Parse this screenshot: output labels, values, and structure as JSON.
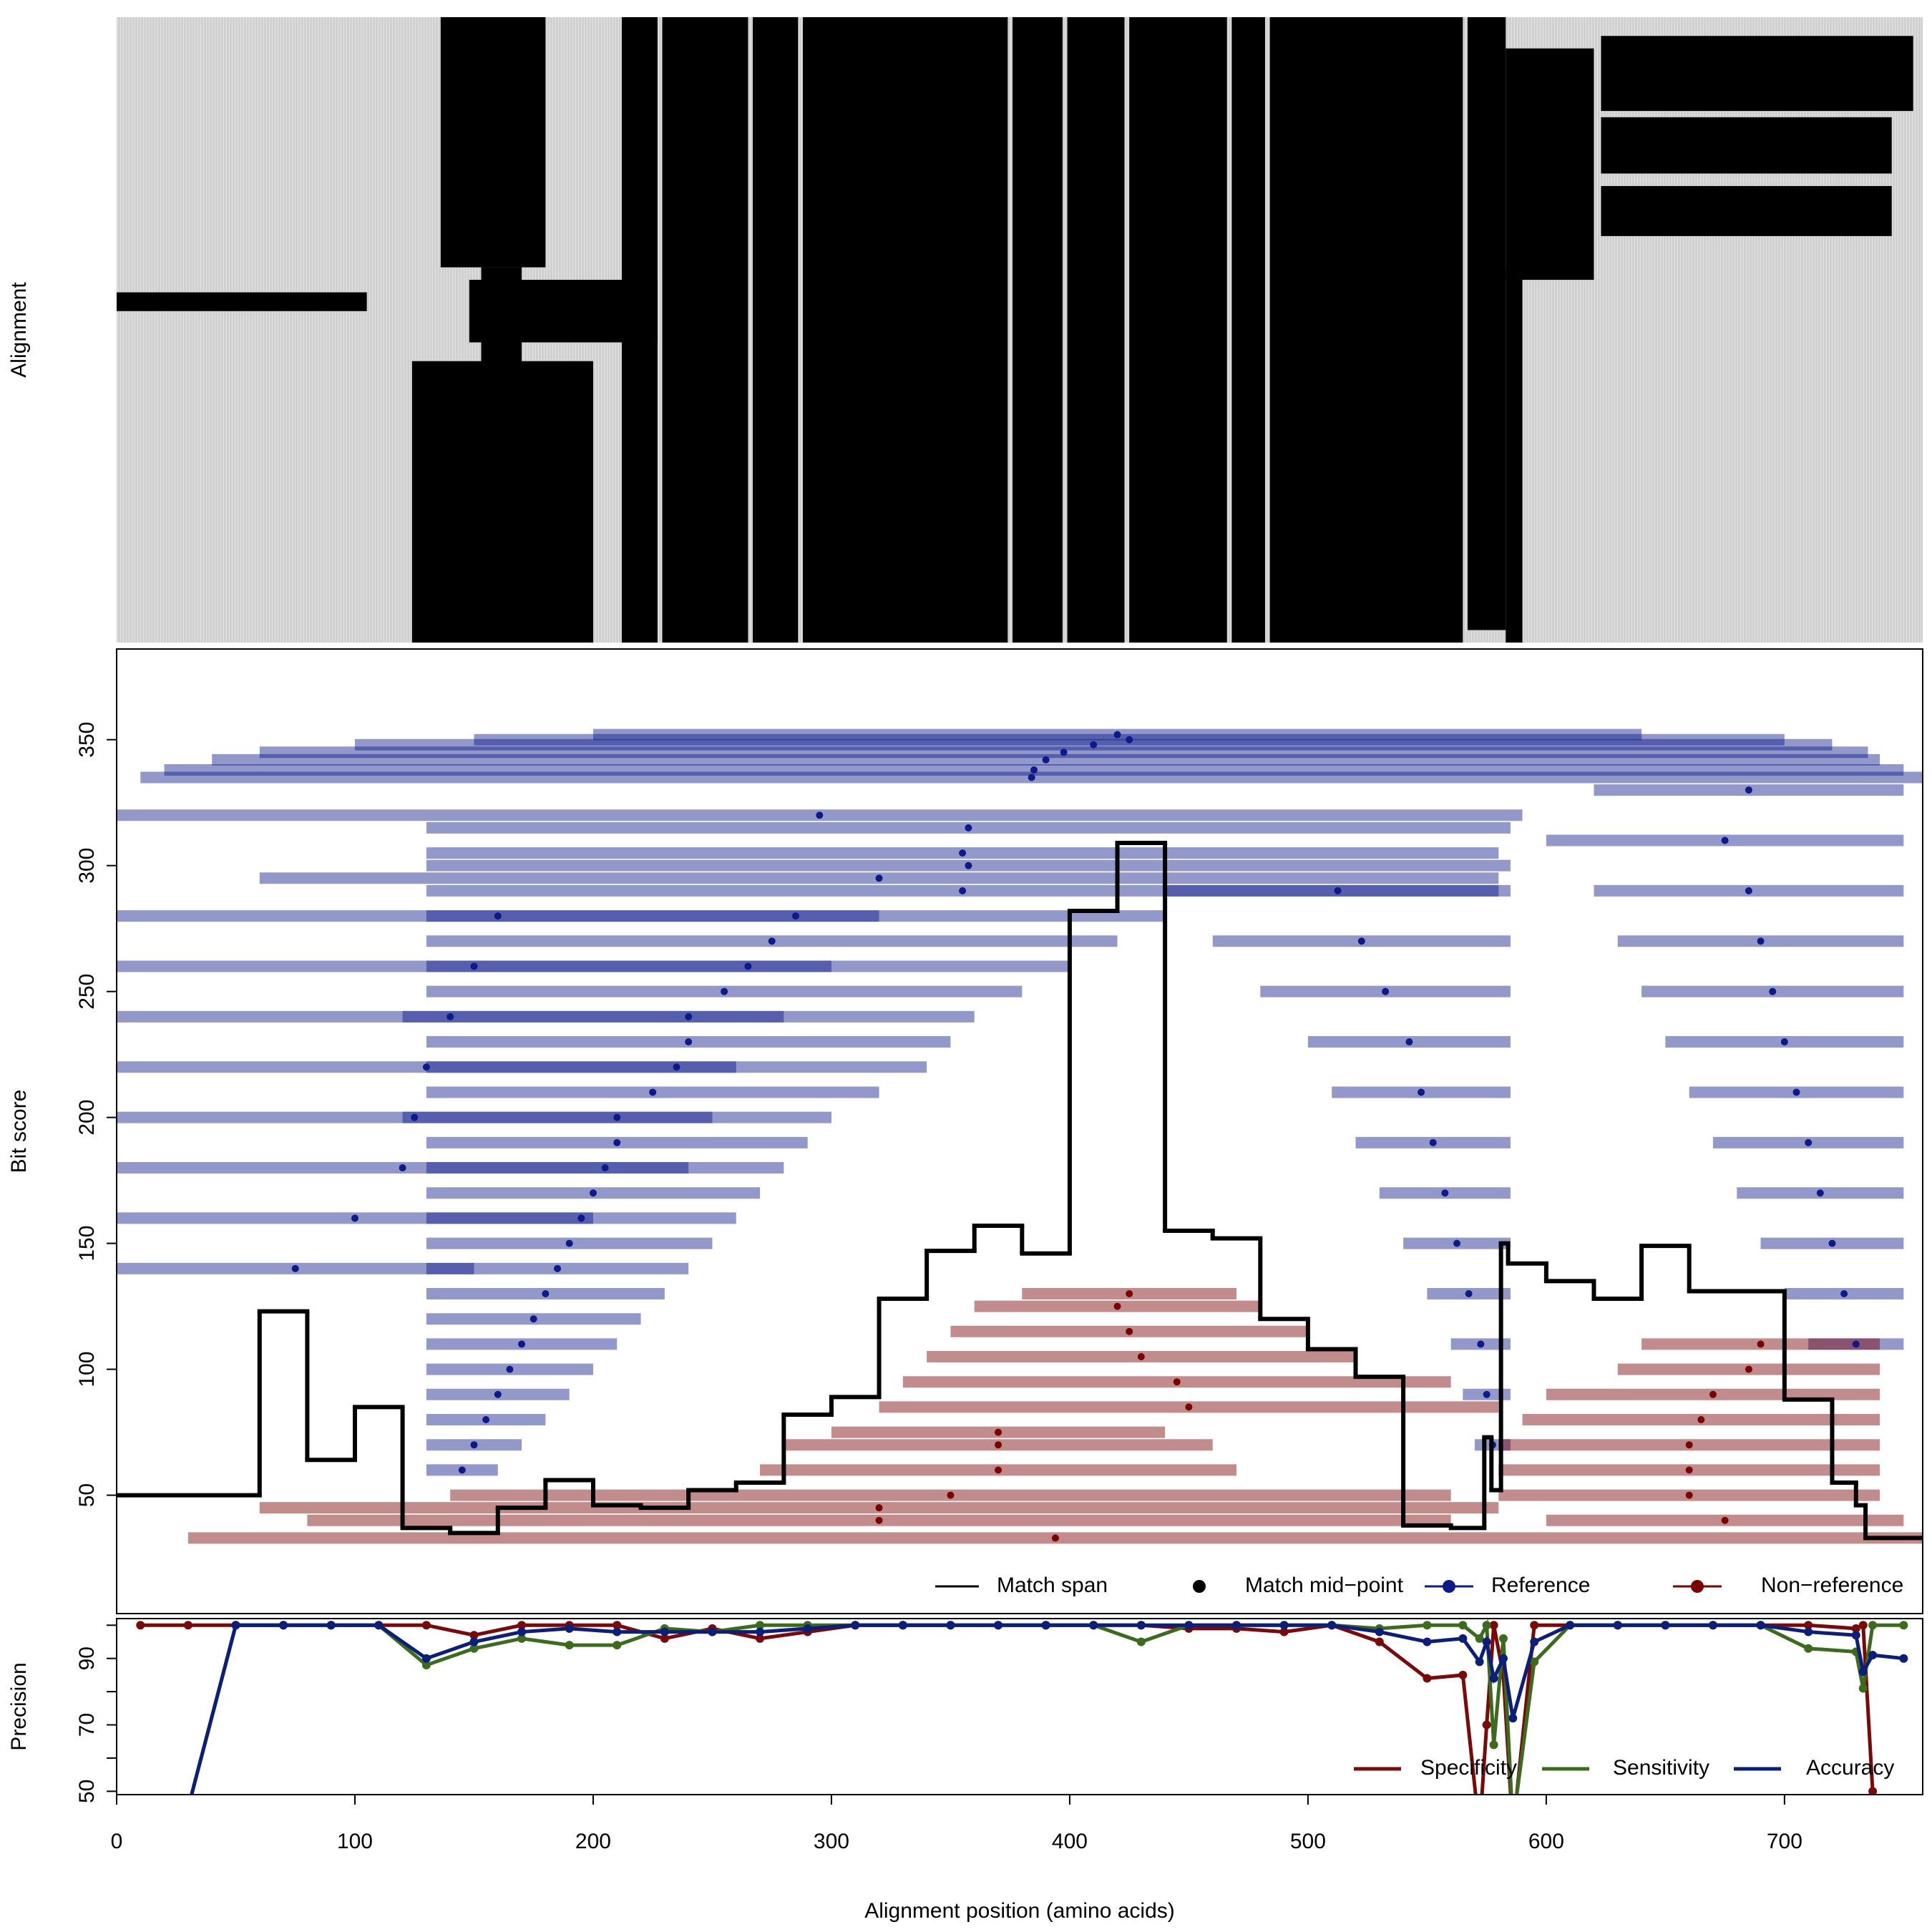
{
  "chart_data": [
    {
      "type": "heatmap",
      "ylabel": "Alignment",
      "xlim": [
        0,
        758
      ],
      "ylim": [
        0,
        100
      ],
      "color": "#000000",
      "background": "#d3d3d3",
      "blocks": [
        [
          229,
          265,
          0,
          100
        ],
        [
          267,
          286,
          0,
          100
        ],
        [
          288,
          374,
          0,
          100
        ],
        [
          376,
          397,
          0,
          100
        ],
        [
          399,
          423,
          0,
          100
        ],
        [
          425,
          466,
          0,
          100
        ],
        [
          468,
          482,
          0,
          100
        ],
        [
          484,
          565,
          0,
          100
        ],
        [
          567,
          583,
          0,
          98
        ],
        [
          136,
          180,
          0,
          40
        ],
        [
          153,
          170,
          40,
          100
        ],
        [
          124,
          200,
          55,
          100
        ],
        [
          0,
          105,
          44,
          47
        ],
        [
          148,
          227,
          42,
          52
        ],
        [
          212,
          227,
          0,
          100
        ],
        [
          583,
          590,
          40,
          100
        ],
        [
          583,
          620,
          5,
          42
        ],
        [
          623,
          754,
          3,
          15
        ],
        [
          623,
          745,
          16,
          25
        ],
        [
          623,
          745,
          27,
          35
        ]
      ]
    },
    {
      "type": "span",
      "ylabel": "Bit score",
      "xlim": [
        0,
        758
      ],
      "ylim": [
        3,
        386
      ],
      "yticks": [
        50,
        100,
        150,
        200,
        250,
        300,
        350
      ],
      "legend": [
        "Match span",
        "Match mid−point"
      ],
      "step": {
        "color": "#000000",
        "edges": [
          0,
          60,
          80,
          100,
          120,
          140,
          160,
          180,
          200,
          220,
          240,
          260,
          280,
          300,
          320,
          340,
          360,
          380,
          400,
          420,
          440,
          460,
          480,
          500,
          520,
          540,
          560,
          574,
          577,
          581,
          584,
          600,
          620,
          640,
          660,
          700,
          720,
          730,
          734,
          758
        ],
        "values": [
          50,
          123,
          64,
          85,
          37,
          35,
          45,
          56,
          46,
          45,
          52,
          55,
          82,
          89,
          128,
          147,
          157,
          146,
          282,
          309,
          155,
          152,
          120,
          108,
          97,
          38,
          37,
          73,
          52,
          150,
          142,
          135,
          128,
          149,
          131,
          88,
          55,
          46,
          33
        ]
      },
      "series": [
        {
          "name": "Reference",
          "color": "#0d1a8a",
          "starts": [
            20,
            40,
            60,
            100,
            150,
            200,
            10,
            0,
            130,
            130,
            130,
            60,
            130,
            130,
            130,
            130,
            130,
            120,
            130,
            130,
            130,
            120,
            130,
            130,
            130,
            130,
            130,
            130,
            130,
            130,
            130,
            130,
            130,
            130,
            130,
            130,
            440,
            460,
            480,
            500,
            510,
            520,
            530,
            540,
            550,
            560,
            565,
            570,
            0,
            0,
            0,
            0,
            0,
            0,
            0,
            0,
            620,
            600,
            620,
            630,
            640,
            650,
            660,
            670,
            680,
            690,
            700,
            710
          ],
          "ends": [
            750,
            740,
            735,
            720,
            700,
            640,
            758,
            590,
            585,
            580,
            585,
            580,
            580,
            440,
            420,
            400,
            380,
            360,
            350,
            340,
            320,
            300,
            290,
            280,
            270,
            260,
            250,
            240,
            230,
            220,
            210,
            200,
            190,
            180,
            170,
            160,
            585,
            585,
            585,
            585,
            585,
            585,
            585,
            585,
            585,
            585,
            585,
            585,
            320,
            300,
            280,
            260,
            250,
            240,
            200,
            150,
            750,
            750,
            750,
            750,
            750,
            750,
            750,
            750,
            750,
            750,
            750,
            750
          ],
          "values": [
            338,
            342,
            345,
            348,
            350,
            352,
            335,
            320,
            315,
            305,
            300,
            295,
            290,
            280,
            270,
            260,
            250,
            240,
            230,
            220,
            210,
            200,
            190,
            180,
            170,
            160,
            150,
            140,
            130,
            120,
            110,
            100,
            90,
            80,
            70,
            60,
            290,
            270,
            250,
            230,
            210,
            190,
            170,
            150,
            130,
            110,
            90,
            70,
            280,
            260,
            240,
            220,
            200,
            180,
            160,
            140,
            330,
            310,
            290,
            270,
            250,
            230,
            210,
            190,
            170,
            150,
            130,
            110
          ]
        },
        {
          "name": "Non−reference",
          "color": "#7a0000",
          "starts": [
            80,
            60,
            140,
            270,
            280,
            300,
            320,
            330,
            340,
            350,
            360,
            380,
            30,
            640,
            630,
            600,
            590,
            580,
            580,
            580,
            600
          ],
          "ends": [
            560,
            580,
            560,
            470,
            460,
            440,
            580,
            560,
            520,
            500,
            480,
            470,
            758,
            740,
            740,
            740,
            740,
            740,
            740,
            740,
            750
          ],
          "values": [
            40,
            45,
            50,
            60,
            70,
            75,
            85,
            95,
            105,
            115,
            125,
            130,
            33,
            110,
            100,
            90,
            80,
            70,
            60,
            50,
            40
          ]
        }
      ]
    },
    {
      "type": "line",
      "ylabel": "Precision",
      "xlabel": "Alignment position (amino acids)",
      "xlim": [
        0,
        758
      ],
      "ylim": [
        49,
        102
      ],
      "yticks": [
        50,
        70,
        90
      ],
      "minor_yticks": [
        60,
        80,
        100
      ],
      "xticks": [
        0,
        100,
        200,
        300,
        400,
        500,
        600,
        700
      ],
      "x": [
        10,
        30,
        50,
        70,
        90,
        110,
        130,
        150,
        170,
        190,
        210,
        230,
        250,
        270,
        290,
        310,
        330,
        350,
        370,
        390,
        410,
        430,
        450,
        470,
        490,
        510,
        530,
        550,
        565,
        572,
        575,
        578,
        582,
        586,
        595,
        610,
        630,
        650,
        670,
        690,
        710,
        730,
        733,
        737,
        750
      ],
      "series": [
        {
          "name": "Specificity",
          "color": "#7a0a0a",
          "values": [
            100,
            100,
            100,
            100,
            100,
            100,
            100,
            97,
            100,
            100,
            100,
            96,
            99,
            96,
            98,
            100,
            100,
            100,
            100,
            100,
            100,
            100,
            99,
            99,
            98,
            100,
            95,
            84,
            85,
            38,
            70,
            100,
            85,
            38,
            100,
            100,
            100,
            100,
            100,
            100,
            100,
            99,
            100,
            50,
            null
          ]
        },
        {
          "name": "Sensitivity",
          "color": "#3c6b1e",
          "values": [
            null,
            45,
            100,
            100,
            100,
            100,
            88,
            93,
            96,
            94,
            94,
            99,
            98,
            100,
            100,
            100,
            100,
            100,
            100,
            100,
            100,
            95,
            100,
            100,
            100,
            100,
            99,
            100,
            100,
            96,
            100,
            64,
            96,
            40,
            89,
            100,
            100,
            100,
            100,
            100,
            93,
            92,
            81,
            100,
            100
          ]
        },
        {
          "name": "Accuracy",
          "color": "#0b1f7a",
          "values": [
            null,
            45,
            100,
            100,
            100,
            100,
            90,
            95,
            98,
            99,
            98,
            98,
            98,
            98,
            99,
            100,
            100,
            100,
            100,
            100,
            100,
            100,
            100,
            100,
            100,
            100,
            98,
            95,
            96,
            89,
            95,
            84,
            90,
            72,
            95,
            100,
            100,
            100,
            100,
            100,
            98,
            97,
            86,
            91,
            90
          ]
        }
      ]
    }
  ]
}
